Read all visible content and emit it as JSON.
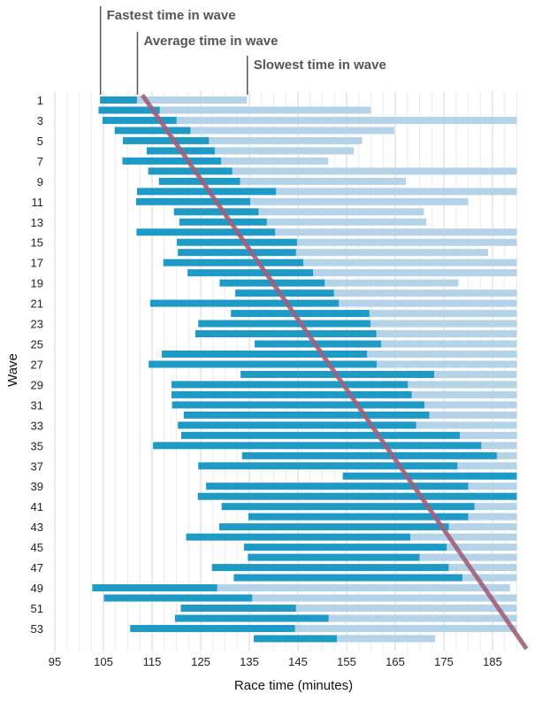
{
  "chart_data": {
    "type": "bar",
    "orientation": "horizontal",
    "xlabel": "Race time (minutes)",
    "ylabel": "Wave",
    "xlim": [
      95,
      190
    ],
    "xticks": [
      95,
      105,
      115,
      125,
      135,
      145,
      155,
      165,
      175,
      185
    ],
    "yticks": [
      1,
      3,
      5,
      7,
      9,
      11,
      13,
      15,
      17,
      19,
      21,
      23,
      25,
      27,
      29,
      31,
      33,
      35,
      37,
      39,
      41,
      43,
      45,
      47,
      49,
      51,
      53
    ],
    "grid": "vertical-minor",
    "annotations": [
      {
        "text": "Fastest time in wave",
        "wave": 1,
        "value": 104.3
      },
      {
        "text": "Average time in wave",
        "wave": 1,
        "value": 111.9
      },
      {
        "text": "Slowest time in wave",
        "wave": 1,
        "value": 134.5
      }
    ],
    "trendline": {
      "name": "Trend",
      "from": {
        "wave": 0.5,
        "value": 113
      },
      "to": {
        "wave": 55,
        "value": 192
      },
      "color": "#A0607A"
    },
    "colors": {
      "fastest_to_average": "#1E9AC7",
      "average_to_slowest": "#B4D3E8",
      "grid": "#DDDDDD"
    },
    "series": [
      {
        "name": "Fastest time in wave",
        "values": [
          104.3,
          104.0,
          104.8,
          107.3,
          109.0,
          113.9,
          108.9,
          114.2,
          116.4,
          111.9,
          111.7,
          119.5,
          120.6,
          111.8,
          120.1,
          120.3,
          117.3,
          122.3,
          128.9,
          132.1,
          114.6,
          131.2,
          124.5,
          123.9,
          136.1,
          117.0,
          114.3,
          133.2,
          119.0,
          119.0,
          119.1,
          121.5,
          120.3,
          121.0,
          115.2,
          133.5,
          124.5,
          154.2,
          126.1,
          124.4,
          129.3,
          134.8,
          128.8,
          122.0,
          133.9,
          134.7,
          127.3,
          131.8,
          102.7,
          105.1,
          120.9,
          119.7,
          110.5,
          135.9
        ]
      },
      {
        "name": "Average time in wave",
        "values": [
          111.9,
          116.6,
          120.0,
          122.9,
          126.7,
          127.9,
          129.2,
          131.5,
          133.1,
          140.5,
          135.2,
          136.9,
          138.6,
          140.3,
          144.8,
          144.6,
          146.1,
          148.1,
          150.5,
          152.4,
          153.4,
          159.7,
          159.9,
          161.1,
          162.1,
          159.2,
          161.2,
          173.0,
          167.6,
          168.4,
          171.0,
          172.0,
          169.3,
          178.3,
          182.7,
          185.9,
          177.8,
          190.0,
          180.0,
          190.0,
          181.3,
          180.0,
          176.0,
          168.1,
          175.6,
          170.0,
          176.0,
          178.8,
          128.4,
          135.6,
          144.6,
          151.3,
          144.4,
          153.0
        ]
      },
      {
        "name": "Slowest time in wave",
        "values": [
          134.5,
          160.0,
          190.0,
          164.8,
          158.2,
          156.5,
          151.2,
          190.0,
          167.2,
          190.0,
          180.0,
          170.9,
          171.4,
          190.0,
          190.0,
          184.1,
          190.0,
          190.0,
          178.0,
          190.0,
          190.0,
          190.0,
          190.0,
          190.0,
          190.0,
          190.0,
          190.0,
          190.0,
          190.0,
          190.0,
          190.0,
          190.0,
          190.0,
          190.0,
          190.0,
          190.0,
          190.0,
          190.0,
          190.0,
          190.0,
          190.0,
          190.0,
          190.0,
          190.0,
          190.0,
          190.0,
          190.0,
          190.0,
          188.6,
          190.0,
          190.0,
          190.0,
          190.0,
          173.2
        ]
      }
    ]
  }
}
